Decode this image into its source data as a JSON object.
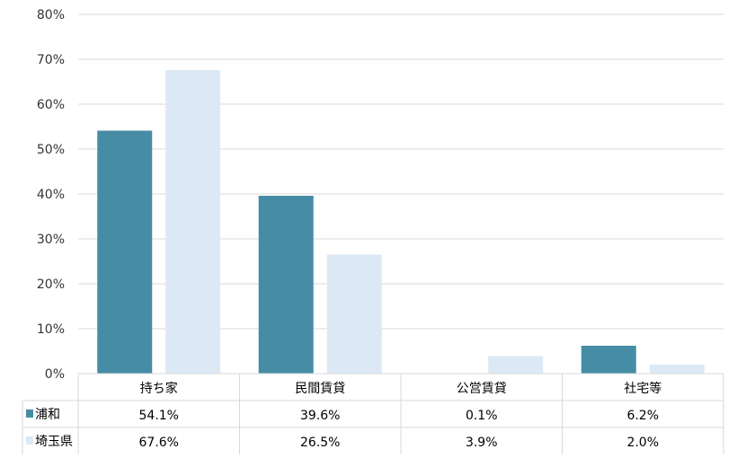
{
  "chart_data": {
    "type": "bar",
    "categories": [
      "持ち家",
      "民間賃貸",
      "公営賃貸",
      "社宅等"
    ],
    "series": [
      {
        "name": "浦和",
        "values": [
          54.1,
          39.6,
          0.1,
          6.2
        ],
        "labels": [
          "54.1%",
          "39.6%",
          "0.1%",
          "6.2%"
        ],
        "color": "#468ca5"
      },
      {
        "name": "埼玉県",
        "values": [
          67.6,
          26.5,
          3.9,
          2.0
        ],
        "labels": [
          "67.6%",
          "26.5%",
          "3.9%",
          "2.0%"
        ],
        "color": "#dce9f5"
      }
    ],
    "ylim": [
      0,
      80
    ],
    "yticks": [
      "0%",
      "10%",
      "20%",
      "30%",
      "40%",
      "50%",
      "60%",
      "70%",
      "80%"
    ],
    "grid": true,
    "legend": "bottom-left data table"
  }
}
